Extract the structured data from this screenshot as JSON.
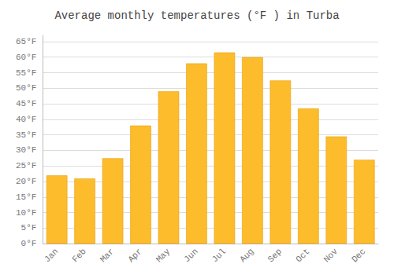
{
  "chart_data": {
    "type": "bar",
    "title": "Average monthly temperatures (°F ) in Turba",
    "categories": [
      "Jan",
      "Feb",
      "Mar",
      "Apr",
      "May",
      "Jun",
      "Jul",
      "Aug",
      "Sep",
      "Oct",
      "Nov",
      "Dec"
    ],
    "values": [
      22,
      21,
      27.5,
      38,
      49,
      58,
      61.5,
      60,
      52.5,
      43.5,
      34.5,
      27
    ],
    "color": "#FDBC2C",
    "ylim": [
      0,
      67
    ],
    "yticks": [
      {
        "value": 0,
        "label": "0°F"
      },
      {
        "value": 5,
        "label": "5°F"
      },
      {
        "value": 10,
        "label": "10°F"
      },
      {
        "value": 15,
        "label": "15°F"
      },
      {
        "value": 20,
        "label": "20°F"
      },
      {
        "value": 25,
        "label": "25°F"
      },
      {
        "value": 30,
        "label": "30°F"
      },
      {
        "value": 35,
        "label": "35°F"
      },
      {
        "value": 40,
        "label": "40°F"
      },
      {
        "value": 45,
        "label": "45°F"
      },
      {
        "value": 50,
        "label": "50°F"
      },
      {
        "value": 55,
        "label": "55°F"
      },
      {
        "value": 60,
        "label": "60°F"
      },
      {
        "value": 65,
        "label": "65°F"
      }
    ],
    "grid": true
  }
}
